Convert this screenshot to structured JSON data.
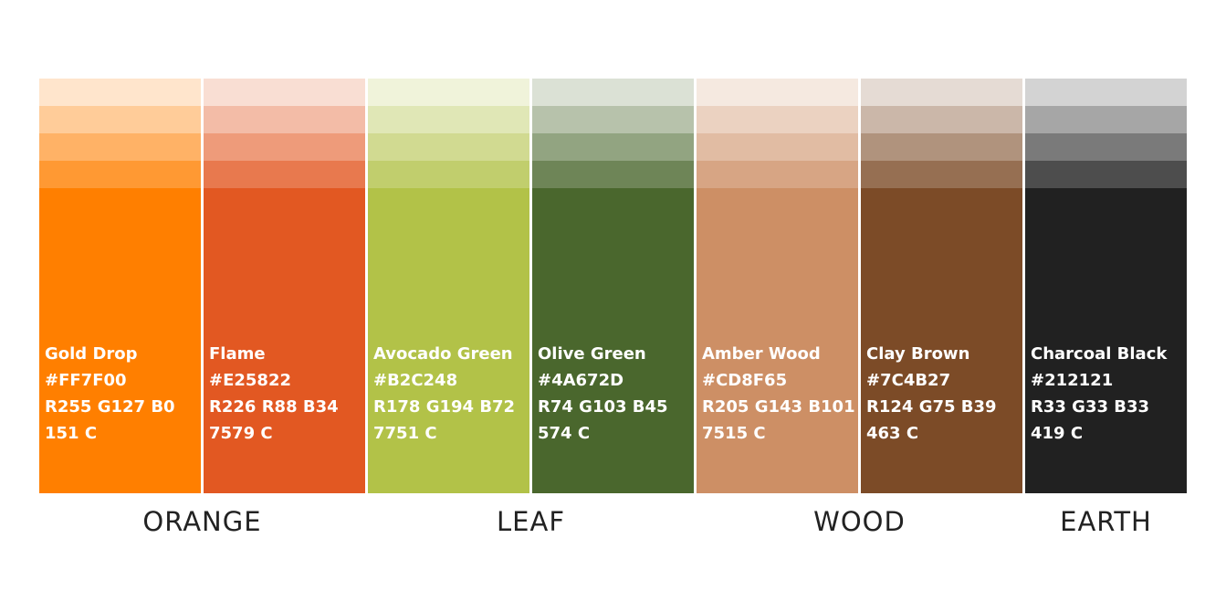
{
  "groups": [
    {
      "label": "ORANGE",
      "swatches": [
        {
          "name": "Gold Drop",
          "hex": "#FF7F00",
          "rgb": "R255 G127 B0",
          "pantone": "151 C"
        },
        {
          "name": "Flame",
          "hex": "#E25822",
          "rgb": "R226 R88 B34",
          "pantone": "7579 C"
        }
      ]
    },
    {
      "label": "LEAF",
      "swatches": [
        {
          "name": "Avocado Green",
          "hex": "#B2C248",
          "rgb": "R178 G194 B72",
          "pantone": "7751 C"
        },
        {
          "name": "Olive Green",
          "hex": "#4A672D",
          "rgb": "R74 G103 B45",
          "pantone": "574 C"
        }
      ]
    },
    {
      "label": "WOOD",
      "swatches": [
        {
          "name": "Amber Wood",
          "hex": "#CD8F65",
          "rgb": "R205 G143 B101",
          "pantone": "7515 C"
        },
        {
          "name": "Clay Brown",
          "hex": "#7C4B27",
          "rgb": "R124 G75 B39",
          "pantone": "463 C"
        }
      ]
    },
    {
      "label": "EARTH",
      "swatches": [
        {
          "name": "Charcoal Black",
          "hex": "#212121",
          "rgb": "R33 G33 B33",
          "pantone": "419 C"
        }
      ]
    }
  ]
}
